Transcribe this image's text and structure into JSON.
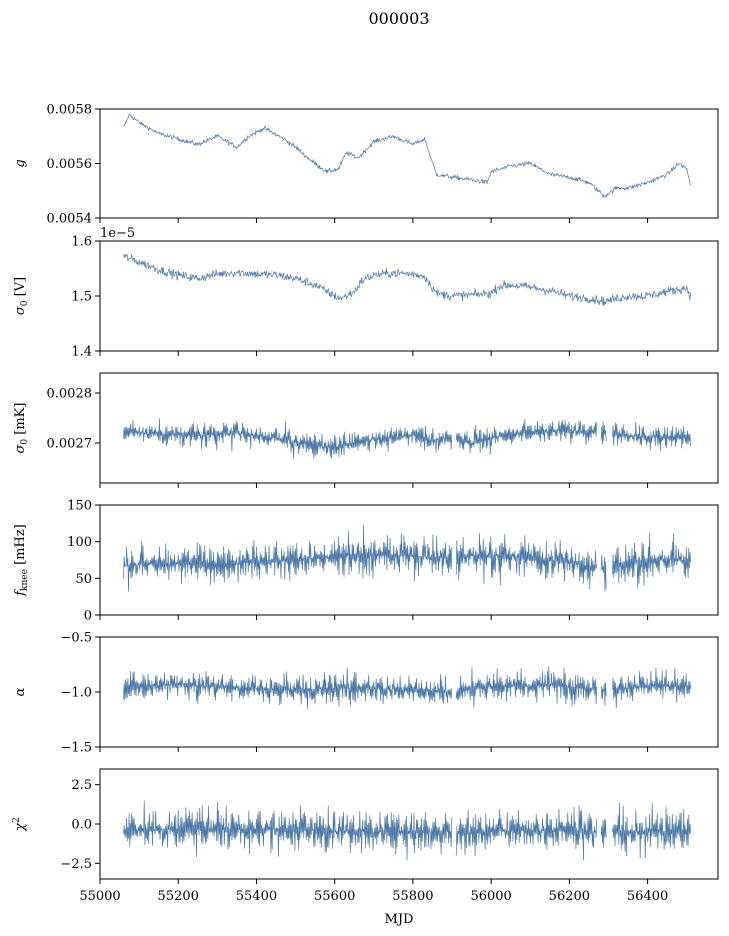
{
  "figure": {
    "title": "000003"
  },
  "chart_data": [
    {
      "type": "line",
      "ylabel": "g",
      "ylim": [
        0.0054,
        0.0058
      ],
      "yticks": [
        0.0054,
        0.0056,
        0.0058
      ],
      "ytick_labels": [
        "0.0054",
        "0.0056",
        "0.0058"
      ],
      "xlim": [
        55000,
        56580
      ],
      "xticks": [
        55000,
        55200,
        55400,
        55600,
        55800,
        56000,
        56200,
        56400
      ],
      "xtick_labels": [],
      "offset_text": "",
      "x_start": 55060,
      "x_end": 56510,
      "series": [
        {
          "color": "#4c78a8",
          "noise": 8e-06,
          "trend": [
            [
              55060,
              0.00573
            ],
            [
              55075,
              0.00578
            ],
            [
              55100,
              0.00575
            ],
            [
              55150,
              0.00571
            ],
            [
              55200,
              0.00569
            ],
            [
              55250,
              0.00567
            ],
            [
              55300,
              0.0057
            ],
            [
              55350,
              0.00566
            ],
            [
              55380,
              0.0057
            ],
            [
              55420,
              0.00573
            ],
            [
              55470,
              0.00569
            ],
            [
              55500,
              0.00566
            ],
            [
              55540,
              0.00561
            ],
            [
              55580,
              0.00557
            ],
            [
              55610,
              0.00558
            ],
            [
              55630,
              0.00564
            ],
            [
              55660,
              0.00562
            ],
            [
              55700,
              0.00568
            ],
            [
              55750,
              0.0057
            ],
            [
              55800,
              0.00567
            ],
            [
              55830,
              0.00569
            ],
            [
              55860,
              0.00556
            ],
            [
              55900,
              0.00555
            ],
            [
              55950,
              0.00554
            ],
            [
              55990,
              0.00553
            ],
            [
              56000,
              0.00557
            ],
            [
              56050,
              0.00559
            ],
            [
              56100,
              0.0056
            ],
            [
              56150,
              0.00556
            ],
            [
              56200,
              0.00555
            ],
            [
              56250,
              0.00553
            ],
            [
              56290,
              0.00548
            ],
            [
              56320,
              0.00551
            ],
            [
              56350,
              0.00551
            ],
            [
              56400,
              0.00553
            ],
            [
              56450,
              0.00556
            ],
            [
              56480,
              0.0056
            ],
            [
              56500,
              0.00558
            ],
            [
              56510,
              0.00552
            ]
          ]
        }
      ]
    },
    {
      "type": "line",
      "ylabel": "σ0 [V]",
      "ylim": [
        1.4,
        1.6
      ],
      "yticks": [
        1.4,
        1.5,
        1.6
      ],
      "ytick_labels": [
        "1.4",
        "1.5",
        "1.6"
      ],
      "xlim": [
        55000,
        56580
      ],
      "xticks": [
        55000,
        55200,
        55400,
        55600,
        55800,
        56000,
        56200,
        56400
      ],
      "xtick_labels": [],
      "offset_text": "1e−5",
      "x_start": 55060,
      "x_end": 56510,
      "series": [
        {
          "color": "#4c78a8",
          "noise": 0.008,
          "trend": [
            [
              55060,
              1.572
            ],
            [
              55100,
              1.562
            ],
            [
              55150,
              1.548
            ],
            [
              55200,
              1.538
            ],
            [
              55250,
              1.532
            ],
            [
              55300,
              1.54
            ],
            [
              55350,
              1.543
            ],
            [
              55400,
              1.54
            ],
            [
              55450,
              1.538
            ],
            [
              55500,
              1.532
            ],
            [
              55550,
              1.52
            ],
            [
              55600,
              1.5
            ],
            [
              55620,
              1.496
            ],
            [
              55650,
              1.508
            ],
            [
              55670,
              1.528
            ],
            [
              55700,
              1.538
            ],
            [
              55750,
              1.542
            ],
            [
              55800,
              1.54
            ],
            [
              55830,
              1.536
            ],
            [
              55860,
              1.505
            ],
            [
              55900,
              1.5
            ],
            [
              55950,
              1.502
            ],
            [
              56000,
              1.505
            ],
            [
              56020,
              1.518
            ],
            [
              56050,
              1.52
            ],
            [
              56100,
              1.516
            ],
            [
              56150,
              1.51
            ],
            [
              56200,
              1.5
            ],
            [
              56250,
              1.496
            ],
            [
              56290,
              1.49
            ],
            [
              56320,
              1.495
            ],
            [
              56350,
              1.5
            ],
            [
              56400,
              1.5
            ],
            [
              56450,
              1.508
            ],
            [
              56500,
              1.515
            ],
            [
              56510,
              1.5
            ]
          ]
        }
      ]
    },
    {
      "type": "line",
      "ylabel": "σ0 [mK]",
      "ylim": [
        0.00262,
        0.00284
      ],
      "yticks": [
        0.0027,
        0.0028
      ],
      "ytick_labels": [
        "0.0027",
        "0.0028"
      ],
      "xlim": [
        55000,
        56580
      ],
      "xticks": [
        55000,
        55200,
        55400,
        55600,
        55800,
        56000,
        56200,
        56400
      ],
      "xtick_labels": [],
      "offset_text": "",
      "x_start": 55060,
      "x_end": 56510,
      "series": [
        {
          "color": "#4c78a8",
          "noise": 1.6e-05,
          "trend": [
            [
              55060,
              0.002722
            ],
            [
              55150,
              0.002718
            ],
            [
              55250,
              0.002715
            ],
            [
              55350,
              0.00272
            ],
            [
              55450,
              0.00271
            ],
            [
              55550,
              0.002695
            ],
            [
              55600,
              0.00269
            ],
            [
              55650,
              0.0027
            ],
            [
              55700,
              0.002708
            ],
            [
              55800,
              0.002715
            ],
            [
              55850,
              0.002705
            ],
            [
              55900,
              0.002712
            ],
            [
              55950,
              0.0027
            ],
            [
              56000,
              0.002712
            ],
            [
              56100,
              0.002722
            ],
            [
              56200,
              0.002725
            ],
            [
              56300,
              0.002718
            ],
            [
              56400,
              0.002712
            ],
            [
              56510,
              0.00271
            ]
          ]
        }
      ]
    },
    {
      "type": "line",
      "ylabel": "f_knee [mHz]",
      "ylim": [
        0,
        150
      ],
      "yticks": [
        0,
        50,
        100,
        150
      ],
      "ytick_labels": [
        "0",
        "50",
        "100",
        "150"
      ],
      "xlim": [
        55000,
        56580
      ],
      "xticks": [
        55000,
        55200,
        55400,
        55600,
        55800,
        56000,
        56200,
        56400
      ],
      "xtick_labels": [],
      "offset_text": "",
      "x_start": 55060,
      "x_end": 56510,
      "series": [
        {
          "color": "#4c78a8",
          "noise": 17,
          "trend": [
            [
              55060,
              68
            ],
            [
              55200,
              70
            ],
            [
              55300,
              69
            ],
            [
              55400,
              72
            ],
            [
              55500,
              76
            ],
            [
              55600,
              80
            ],
            [
              55700,
              82
            ],
            [
              55800,
              80
            ],
            [
              55900,
              78
            ],
            [
              56000,
              82
            ],
            [
              56100,
              78
            ],
            [
              56200,
              72
            ],
            [
              56280,
              62
            ],
            [
              56330,
              70
            ],
            [
              56400,
              76
            ],
            [
              56510,
              74
            ]
          ]
        }
      ]
    },
    {
      "type": "line",
      "ylabel": "α",
      "ylim": [
        -1.5,
        -0.5
      ],
      "yticks": [
        -1.5,
        -1.0,
        -0.5
      ],
      "ytick_labels": [
        "−1.5",
        "−1.0",
        "−0.5"
      ],
      "xlim": [
        55000,
        56580
      ],
      "xticks": [
        55000,
        55200,
        55400,
        55600,
        55800,
        56000,
        56200,
        56400
      ],
      "xtick_labels": [],
      "offset_text": "",
      "x_start": 55060,
      "x_end": 56510,
      "series": [
        {
          "color": "#4c78a8",
          "noise": 0.09,
          "trend": [
            [
              55060,
              -0.95
            ],
            [
              55200,
              -0.93
            ],
            [
              55350,
              -0.96
            ],
            [
              55500,
              -0.98
            ],
            [
              55650,
              -0.96
            ],
            [
              55800,
              -0.98
            ],
            [
              55900,
              -1.0
            ],
            [
              56000,
              -0.95
            ],
            [
              56150,
              -0.94
            ],
            [
              56300,
              -0.98
            ],
            [
              56400,
              -0.95
            ],
            [
              56510,
              -0.95
            ]
          ]
        }
      ]
    },
    {
      "type": "line",
      "ylabel": "χ2",
      "ylim": [
        -3.5,
        3.5
      ],
      "yticks": [
        -2.5,
        0.0,
        2.5
      ],
      "ytick_labels": [
        "−2.5",
        "0.0",
        "2.5"
      ],
      "xlim": [
        55000,
        56580
      ],
      "xticks": [
        55000,
        55200,
        55400,
        55600,
        55800,
        56000,
        56200,
        56400
      ],
      "xtick_labels": [
        "55000",
        "55200",
        "55400",
        "55600",
        "55800",
        "56000",
        "56200",
        "56400"
      ],
      "xlabel": "MJD",
      "offset_text": "",
      "x_start": 55060,
      "x_end": 56510,
      "series": [
        {
          "color": "#4c78a8",
          "noise": 0.85,
          "trend": [
            [
              55060,
              -0.4
            ],
            [
              55300,
              -0.3
            ],
            [
              55500,
              -0.4
            ],
            [
              55700,
              -0.5
            ],
            [
              55900,
              -0.5
            ],
            [
              56100,
              -0.4
            ],
            [
              56300,
              -0.5
            ],
            [
              56510,
              -0.5
            ]
          ]
        }
      ]
    }
  ]
}
